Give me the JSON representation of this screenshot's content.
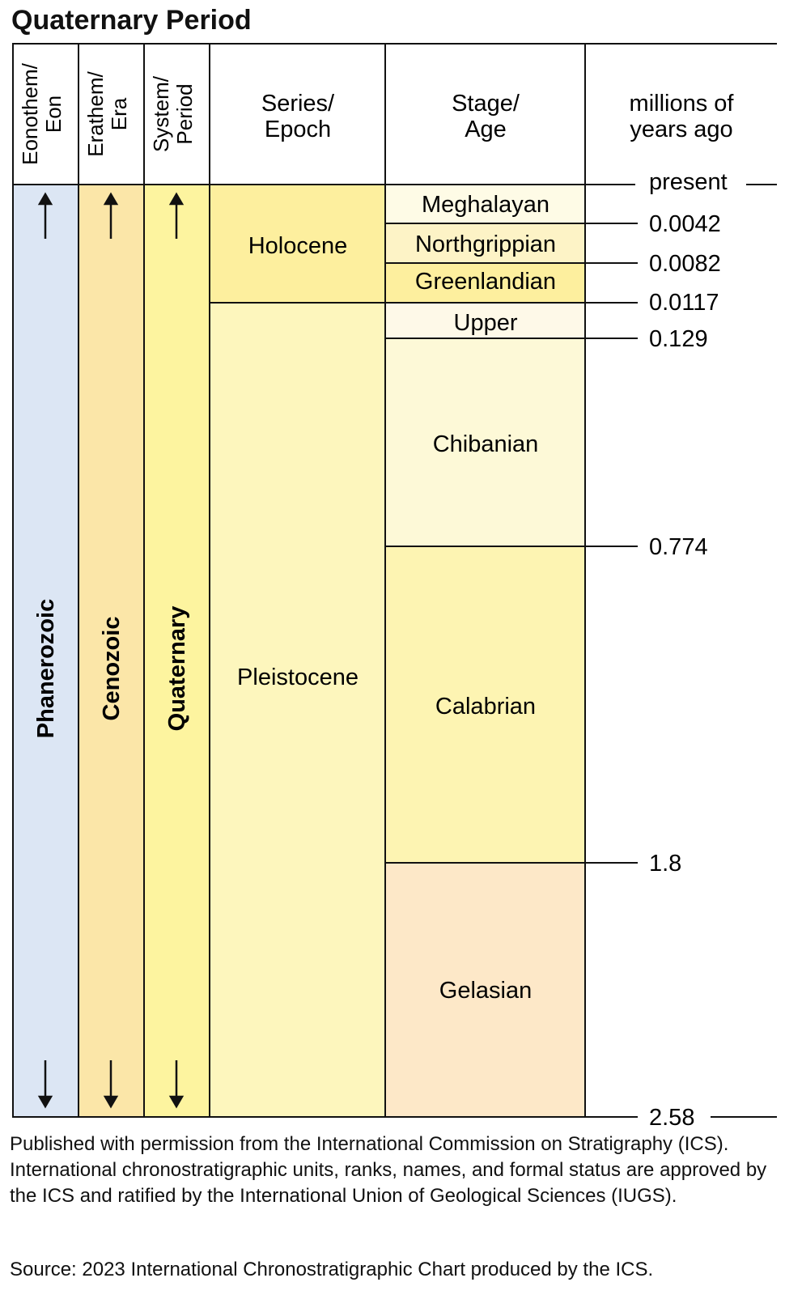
{
  "title": "Quaternary Period",
  "headers": {
    "eon": [
      "Eonothem/",
      "Eon"
    ],
    "era": [
      "Erathem/",
      "Era"
    ],
    "period": [
      "System/",
      "Period"
    ],
    "epoch": [
      "Series/",
      "Epoch"
    ],
    "age": [
      "Stage/",
      "Age"
    ],
    "mya": [
      "millions of",
      "years ago"
    ]
  },
  "units": {
    "eon": "Phanerozoic",
    "era": "Cenozoic",
    "period": "Quaternary",
    "epochs": [
      "Holocene",
      "Pleistocene"
    ],
    "stages": [
      "Meghalayan",
      "Northgrippian",
      "Greenlandian",
      "Upper",
      "Chibanian",
      "Calabrian",
      "Gelasian"
    ]
  },
  "boundaries": [
    "present",
    "0.0042",
    "0.0082",
    "0.0117",
    "0.129",
    "0.774",
    "1.8",
    "2.58"
  ],
  "colors": {
    "eon": "#dce6f4",
    "era": "#fbe6a8",
    "period": "#fdf49f",
    "holocene": "#fdef9e",
    "pleistocene": "#fdf6bd",
    "meghalayan": "#fefbe6",
    "northgrippian": "#fdf3c6",
    "greenlandian": "#fdef9e",
    "upper": "#fef9e8",
    "chibanian": "#fdf9d7",
    "calabrian": "#fdf4b2",
    "gelasian": "#fde8c8"
  },
  "footer": {
    "permission": "Published with permission from the International Commission on Stratigraphy (ICS). International chronostratigraphic units, ranks, names, and formal status are approved by the ICS and ratified by the International Union of Geological Sciences (IUGS).",
    "source": "Source: 2023 International Chronostratigraphic Chart produced by the ICS."
  }
}
